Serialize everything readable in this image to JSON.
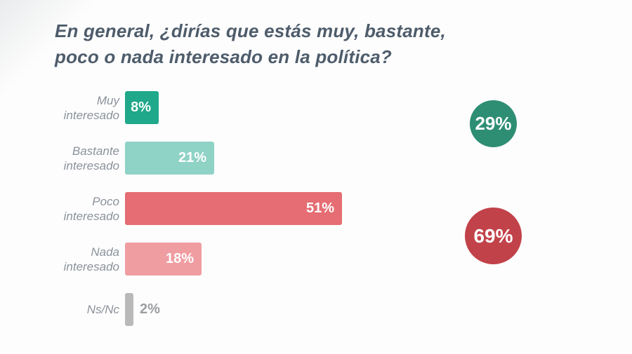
{
  "page": {
    "background": "#fdfdfd",
    "title_color": "#4e5c6b",
    "label_color": "#8b929b",
    "outside_value_color": "#9b9ea1"
  },
  "chart_data": {
    "type": "bar",
    "orientation": "horizontal",
    "title": "En general, ¿dirías que estás muy, bastante, poco o nada interesado en la política?",
    "title_lines": [
      "En general, ¿dirías que estás muy, bastante,",
      "poco o nada interesado en la política?"
    ],
    "categories": [
      "Muy interesado",
      "Bastante interesado",
      "Poco interesado",
      "Nada interesado",
      "Ns/Nc"
    ],
    "values": [
      8,
      21,
      51,
      18,
      2
    ],
    "xlim": [
      0,
      55
    ],
    "grid": false,
    "legend": false,
    "rows": [
      {
        "label": "Muy interesado",
        "label_lines": [
          "Muy",
          "interesado"
        ],
        "value": 8,
        "display": "8%",
        "color": "#1fa88a",
        "value_inside": true
      },
      {
        "label": "Bastante interesado",
        "label_lines": [
          "Bastante",
          "interesado"
        ],
        "value": 21,
        "display": "21%",
        "color": "#8fd2c6",
        "value_inside": true
      },
      {
        "label": "Poco interesado",
        "label_lines": [
          "Poco",
          "interesado"
        ],
        "value": 51,
        "display": "51%",
        "color": "#e56d73",
        "value_inside": true
      },
      {
        "label": "Nada interesado",
        "label_lines": [
          "Nada",
          "interesado"
        ],
        "value": 18,
        "display": "18%",
        "color": "#f09da1",
        "value_inside": true
      },
      {
        "label": "Ns/Nc",
        "label_lines": [
          "Ns/Nc"
        ],
        "value": 2,
        "display": "2%",
        "color": "#b9b9b9",
        "value_inside": false
      }
    ],
    "summary_circles": [
      {
        "display": "29%",
        "value": 29,
        "color": "#2e8e74"
      },
      {
        "display": "69%",
        "value": 69,
        "color": "#c2424a"
      }
    ]
  }
}
